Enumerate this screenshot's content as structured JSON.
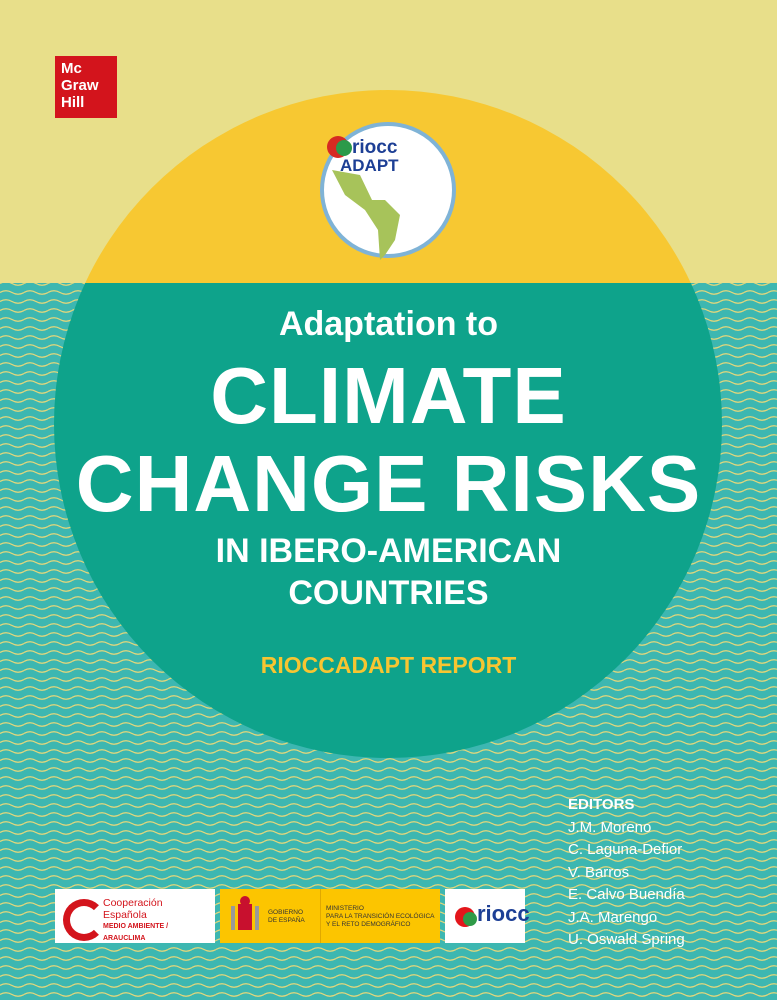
{
  "publisher": {
    "logo_lines": [
      "Mc",
      "Graw",
      "Hill"
    ],
    "color": "#d3141c"
  },
  "emblem": {
    "text_lines": [
      "riocc",
      "ADAPT"
    ]
  },
  "title": {
    "line1": "Adaptation to",
    "line2": "CLIMATE",
    "line3": "CHANGE RISKS",
    "line4": "IN IBERO-AMERICAN",
    "line5": "COUNTRIES"
  },
  "subtitle": "RIOCCADAPT REPORT",
  "editors": {
    "heading": "EDITORS",
    "names": [
      "J.M. Moreno",
      "C. Laguna-Defior",
      "V. Barros",
      "E. Calvo Buendía",
      "J.A. Marengo",
      "U. Oswald Spring"
    ]
  },
  "sponsors": {
    "cooperacion": [
      "Cooperación",
      "Española",
      "MEDIO AMBIENTE / ARAUCLIMA"
    ],
    "gobierno": [
      "GOBIERNO",
      "DE ESPAÑA"
    ],
    "ministerio": [
      "MINISTERIO",
      "PARA LA TRANSICIÓN ECOLÓGICA",
      "Y EL RETO DEMOGRÁFICO"
    ],
    "riocc": "riocc"
  },
  "colors": {
    "top": "#e8df8a",
    "teal_bg": "#3db7b1",
    "circle_top": "#f7c832",
    "circle_bottom": "#0ea38b",
    "accent": "#f7c531"
  }
}
